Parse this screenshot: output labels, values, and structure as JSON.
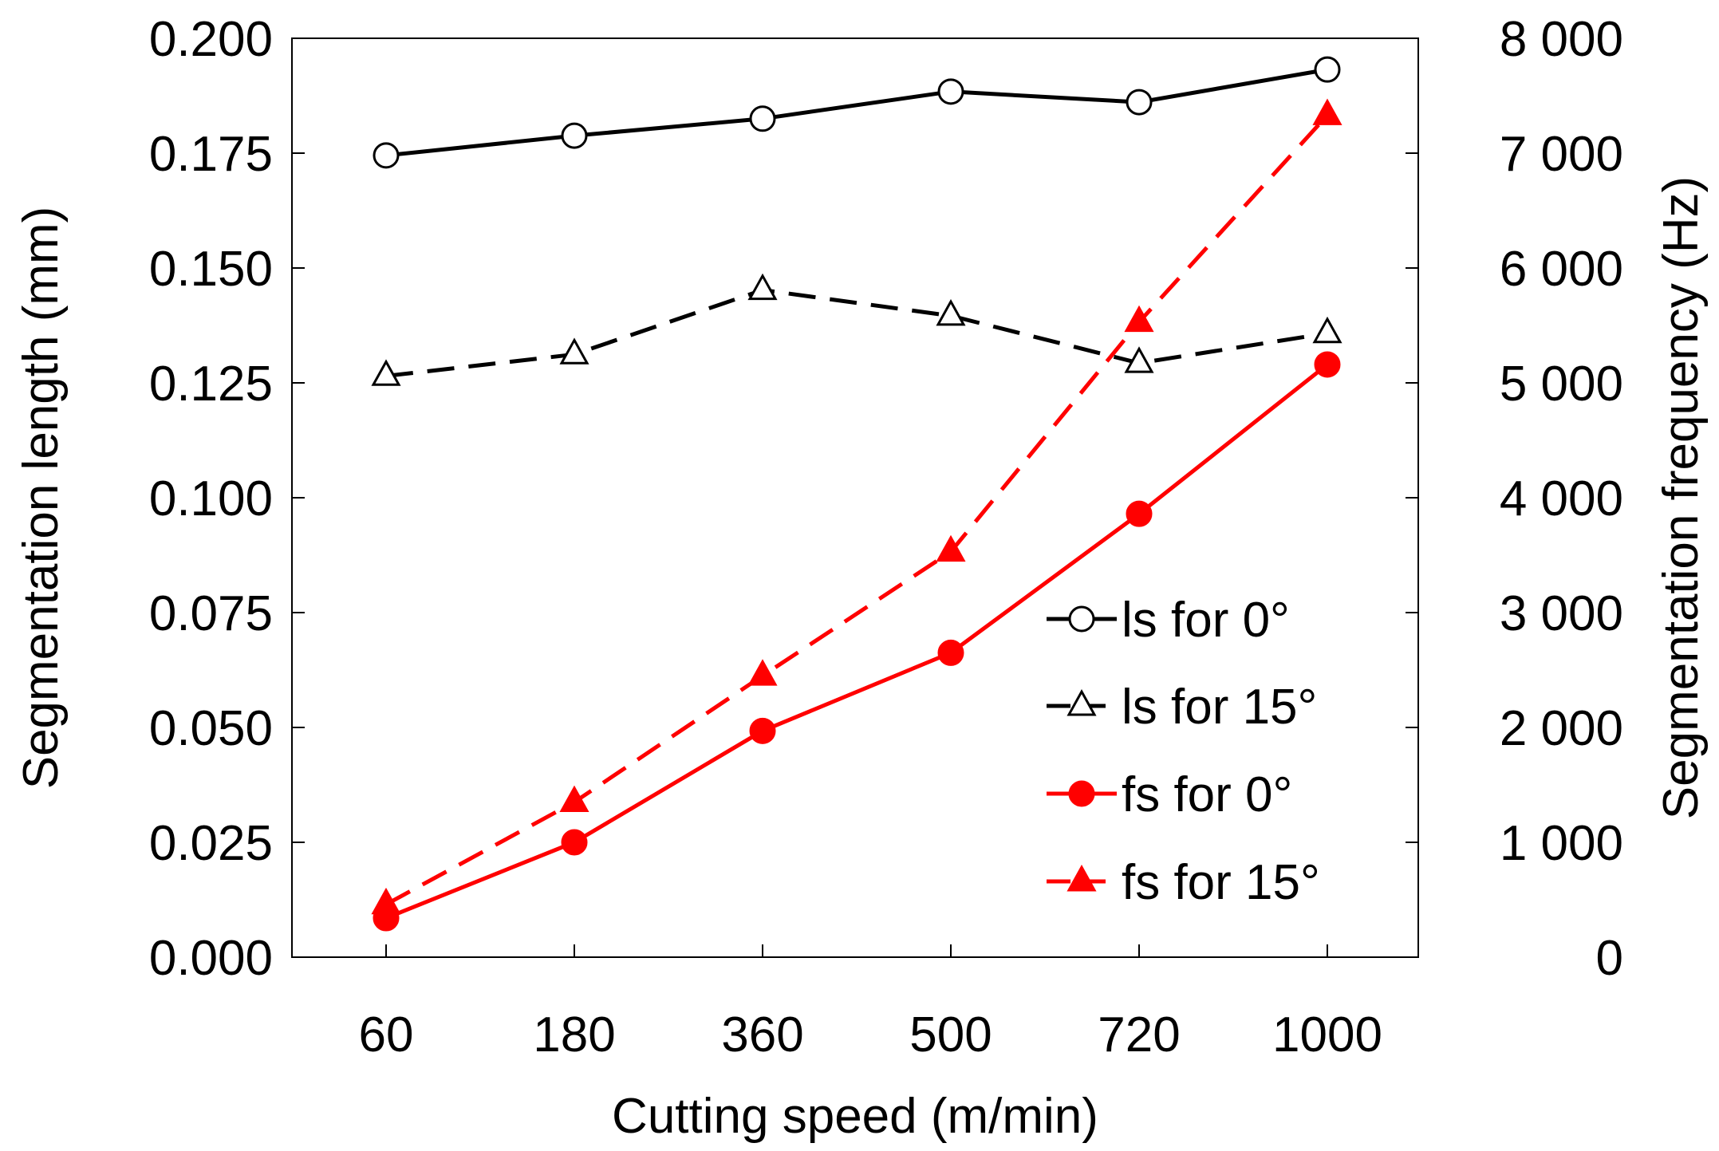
{
  "chart_data": {
    "type": "line",
    "title": "",
    "xlabel": "Cutting speed (m/min)",
    "ylabel": "Segmentation length (mm)",
    "y2label": "Segmentation frequency (Hz)",
    "categories": [
      "60",
      "180",
      "360",
      "500",
      "720",
      "1000"
    ],
    "ylim": [
      0,
      0.2
    ],
    "y2lim": [
      0,
      8000
    ],
    "yticks": [
      "0.000",
      "0.025",
      "0.050",
      "0.075",
      "0.100",
      "0.125",
      "0.150",
      "0.175",
      "0.200"
    ],
    "y2ticks": [
      "0",
      "1 000",
      "2 000",
      "3 000",
      "4 000",
      "5 000",
      "6 000",
      "7 000",
      "8 000"
    ],
    "grid": false,
    "legend_position": "bottom-right",
    "series": [
      {
        "name": "ls for 0°",
        "axis": "left",
        "color": "#000000",
        "line": "solid",
        "marker": "circle-open",
        "values": [
          0.1745,
          0.1788,
          0.1825,
          0.1884,
          0.1861,
          0.1932
        ]
      },
      {
        "name": "ls for 15°",
        "axis": "left",
        "color": "#000000",
        "line": "dashed",
        "marker": "triangle-open",
        "values": [
          0.1265,
          0.1312,
          0.1452,
          0.1396,
          0.1293,
          0.1358
        ]
      },
      {
        "name": "fs for 0°",
        "axis": "right",
        "color": "#ff0000",
        "line": "solid",
        "marker": "circle-filled",
        "values": [
          340,
          1000,
          1970,
          2650,
          3860,
          5160
        ]
      },
      {
        "name": "fs for 15°",
        "axis": "right",
        "color": "#ff0000",
        "line": "dashed",
        "marker": "triangle-filled",
        "values": [
          460,
          1350,
          2450,
          3530,
          5530,
          7330
        ]
      }
    ]
  }
}
